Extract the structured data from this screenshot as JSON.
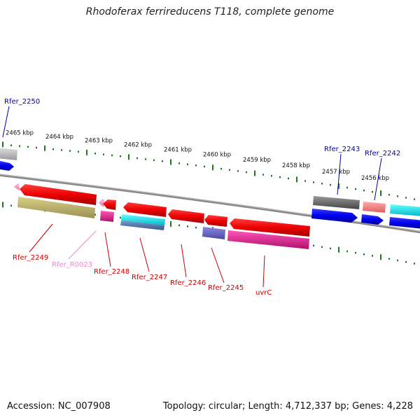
{
  "title": "Rhodoferax ferrireducens T118, complete genome",
  "footer": {
    "accession": "Accession: NC_007908",
    "summary": "Topology: circular; Length: 4,712,337 bp; Genes: 4,228"
  },
  "colors": {
    "backbone": "#808080",
    "tick": "#1a7a1a",
    "label_red": "#cc0000",
    "label_blue": "#0000aa",
    "label_pink": "#ee88cc"
  },
  "ticks": [
    "2465 kbp",
    "2464 kbp",
    "2463 kbp",
    "2462 kbp",
    "2461 kbp",
    "2460 kbp",
    "2459 kbp",
    "2458 kbp",
    "2457 kbp",
    "2456 kbp"
  ],
  "gene_labels": [
    {
      "text": "Rfer_2250",
      "color": "blue"
    },
    {
      "text": "Rfer_2243",
      "color": "blue"
    },
    {
      "text": "Rfer_2242",
      "color": "blue"
    },
    {
      "text": "Rfer_2249",
      "color": "red"
    },
    {
      "text": "Rfer_R0023",
      "color": "pink"
    },
    {
      "text": "Rfer_2248",
      "color": "red"
    },
    {
      "text": "Rfer_2247",
      "color": "red"
    },
    {
      "text": "Rfer_2246",
      "color": "red"
    },
    {
      "text": "Rfer_2245",
      "color": "red"
    },
    {
      "text": "uvrC",
      "color": "red"
    }
  ]
}
